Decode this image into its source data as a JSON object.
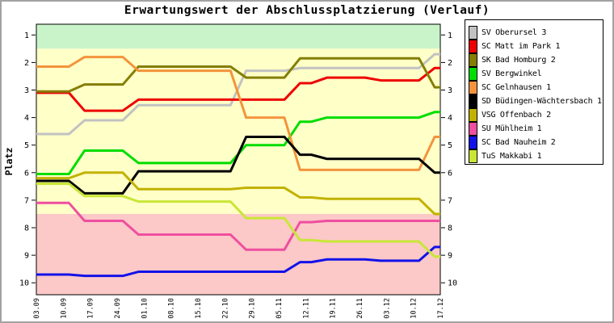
{
  "chart_data": {
    "type": "line",
    "title": "Erwartungswert der Abschlussplatzierung (Verlauf)",
    "ylabel": "Platz",
    "y_axis_inverted": true,
    "ylim": [
      0.55,
      10.45
    ],
    "y_ticks": [
      1,
      2,
      3,
      4,
      5,
      6,
      7,
      8,
      9,
      10
    ],
    "grid": false,
    "legend_position": "right",
    "x_labels": [
      "03.09",
      "10.09",
      "17.09",
      "24.09",
      "01.10",
      "08.10",
      "15.10",
      "22.10",
      "29.10",
      "05.11",
      "12.11",
      "19.11",
      "26.11",
      "03.12",
      "10.12",
      "17.12"
    ],
    "zones": [
      {
        "from": 0.55,
        "to": 1.5,
        "color": "#c9f4c9"
      },
      {
        "from": 1.5,
        "to": 7.5,
        "color": "#ffffc8"
      },
      {
        "from": 7.5,
        "to": 10.45,
        "color": "#fcc8c8"
      }
    ],
    "series": [
      {
        "name": "SV Oberursel 3",
        "color": "#c2c2c2",
        "values": [
          4.6,
          4.6,
          4.1,
          4.1,
          3.55,
          3.55,
          3.55,
          3.55,
          2.3,
          2.3,
          2.2,
          2.2,
          2.2,
          2.2,
          2.2,
          1.7
        ]
      },
      {
        "name": "SC Matt im Park 1",
        "color": "#ee0000",
        "values": [
          3.1,
          3.1,
          3.75,
          3.75,
          3.35,
          3.35,
          3.35,
          3.35,
          3.35,
          3.35,
          2.75,
          2.55,
          2.55,
          2.65,
          2.65,
          2.2
        ]
      },
      {
        "name": "SK Bad Homburg 2",
        "color": "#847e04",
        "values": [
          3.05,
          3.05,
          2.8,
          2.8,
          2.15,
          2.15,
          2.15,
          2.15,
          2.55,
          2.55,
          1.85,
          1.85,
          1.85,
          1.85,
          1.85,
          2.9
        ]
      },
      {
        "name": "SV Bergwinkel",
        "color": "#00dd00",
        "values": [
          6.05,
          6.05,
          5.2,
          5.2,
          5.65,
          5.65,
          5.65,
          5.65,
          5.0,
          5.0,
          4.15,
          4.0,
          4.0,
          4.0,
          4.0,
          3.8
        ]
      },
      {
        "name": "SC Gelnhausen 1",
        "color": "#f3943d",
        "values": [
          2.15,
          2.15,
          1.8,
          1.8,
          2.3,
          2.3,
          2.3,
          2.3,
          4.0,
          4.0,
          5.9,
          5.9,
          5.9,
          5.9,
          5.9,
          4.7
        ]
      },
      {
        "name": "SD Büdingen-Wächtersbach 1",
        "color": "#000000",
        "values": [
          6.3,
          6.3,
          6.75,
          6.75,
          5.95,
          5.95,
          5.95,
          5.95,
          4.7,
          4.7,
          5.35,
          5.5,
          5.5,
          5.5,
          5.5,
          6.0
        ]
      },
      {
        "name": "VSG Offenbach 2",
        "color": "#c2b200",
        "values": [
          6.2,
          6.2,
          6.0,
          6.0,
          6.6,
          6.6,
          6.6,
          6.6,
          6.55,
          6.55,
          6.9,
          6.95,
          6.95,
          6.95,
          6.95,
          7.5
        ]
      },
      {
        "name": "SU Mühlheim 1",
        "color": "#ee4f9f",
        "values": [
          7.1,
          7.1,
          7.75,
          7.75,
          8.25,
          8.25,
          8.25,
          8.25,
          8.8,
          8.8,
          7.8,
          7.75,
          7.75,
          7.75,
          7.75,
          7.75
        ]
      },
      {
        "name": "SC Bad Nauheim 2",
        "color": "#1212e8",
        "values": [
          9.7,
          9.7,
          9.75,
          9.75,
          9.6,
          9.6,
          9.6,
          9.6,
          9.6,
          9.6,
          9.25,
          9.15,
          9.15,
          9.2,
          9.2,
          8.7
        ]
      },
      {
        "name": "TuS Makkabi 1",
        "color": "#c9e636",
        "values": [
          6.4,
          6.4,
          6.85,
          6.85,
          7.05,
          7.05,
          7.05,
          7.05,
          7.65,
          7.65,
          8.45,
          8.5,
          8.5,
          8.5,
          8.5,
          9.05
        ]
      }
    ]
  }
}
